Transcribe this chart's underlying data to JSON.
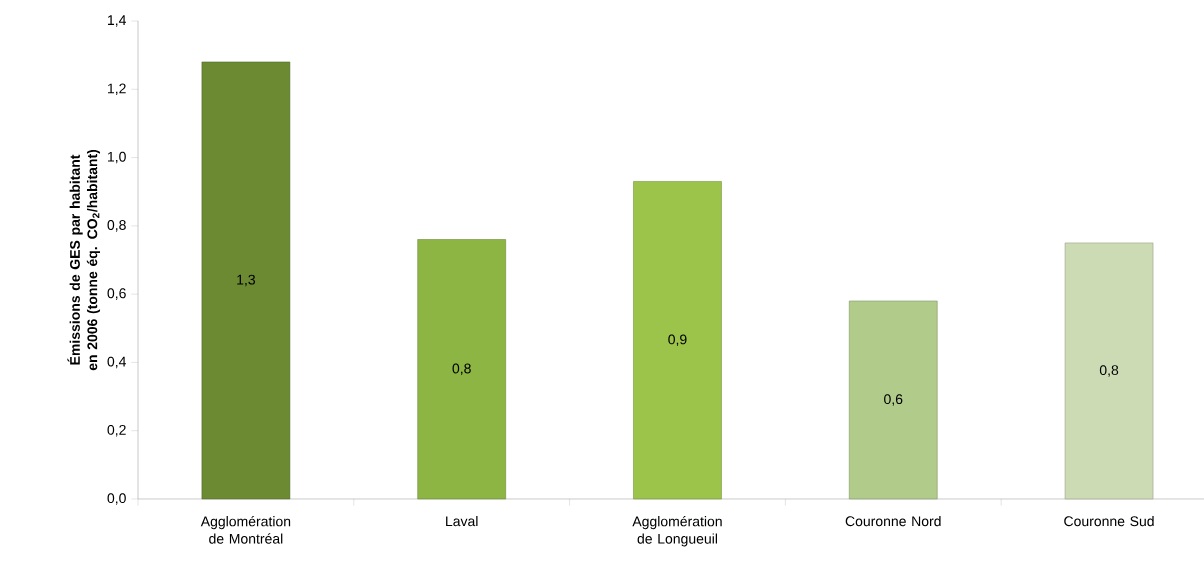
{
  "chart_data": {
    "type": "bar",
    "ylabel": "Émissions de GES par habitant en 2006 (tonne éq. CO$_{2}$/habitant)",
    "categories": [
      "Agglomération de Montréal",
      "Laval",
      "Agglomération de Longueuil",
      "Couronne Nord",
      "Couronne Sud"
    ],
    "values": [
      1.28,
      0.76,
      0.93,
      0.58,
      0.75
    ],
    "value_labels": [
      "1,3",
      "0,8",
      "0,9",
      "0,6",
      "0,8"
    ],
    "colors": [
      "#6b8a32",
      "#8db543",
      "#9cc44a",
      "#b0cb8a",
      "#cddbb5"
    ],
    "ylim": [
      0,
      1.4
    ],
    "yticks": [
      {
        "value": 0,
        "label": "0,0"
      },
      {
        "value": 0.2,
        "label": "0,2"
      },
      {
        "value": 0.4,
        "label": "0,4"
      },
      {
        "value": 0.6,
        "label": "0,6"
      },
      {
        "value": 0.8,
        "label": "0,8"
      },
      {
        "value": 1.0,
        "label": "1,0"
      },
      {
        "value": 1.2,
        "label": "1,2"
      },
      {
        "value": 1.4,
        "label": "1,4"
      }
    ],
    "grid": false
  }
}
